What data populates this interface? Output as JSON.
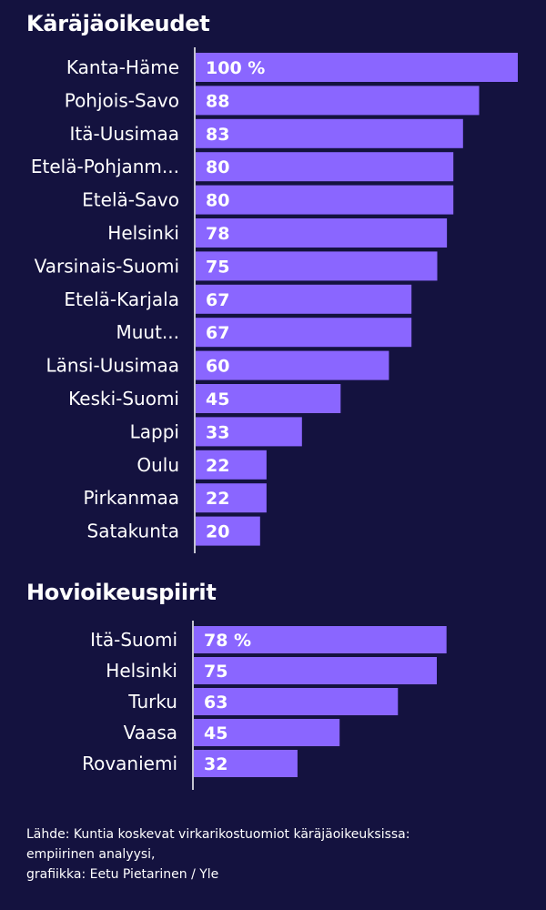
{
  "chart_data": [
    {
      "type": "bar",
      "orientation": "horizontal",
      "title": "Käräjäoikeudet",
      "categories": [
        "Kanta-Häme",
        "Pohjois-Savo",
        "Itä-Uusimaa",
        "Etelä-Pohjanm...",
        "Etelä-Savo",
        "Helsinki",
        "Varsinais-Suomi",
        "Etelä-Karjala",
        "Muut...",
        "Länsi-Uusimaa",
        "Keski-Suomi",
        "Lappi",
        "Oulu",
        "Pirkanmaa",
        "Satakunta"
      ],
      "values": [
        100,
        88,
        83,
        80,
        80,
        78,
        75,
        67,
        67,
        60,
        45,
        33,
        22,
        22,
        20
      ],
      "value_labels": [
        "100 %",
        "88",
        "83",
        "80",
        "80",
        "78",
        "75",
        "67",
        "67",
        "60",
        "45",
        "33",
        "22",
        "22",
        "20"
      ],
      "xlim": [
        0,
        100
      ],
      "bar_color": "#8a66ff",
      "grid": false,
      "legend": "none"
    },
    {
      "type": "bar",
      "orientation": "horizontal",
      "title": "Hovioikeuspiirit",
      "categories": [
        "Itä-Suomi",
        "Helsinki",
        "Turku",
        "Vaasa",
        "Rovaniemi"
      ],
      "values": [
        78,
        75,
        63,
        45,
        32
      ],
      "value_labels": [
        "78 %",
        "75",
        "63",
        "45",
        "32"
      ],
      "xlim": [
        0,
        100
      ],
      "bar_color": "#8a66ff",
      "grid": false,
      "legend": "none"
    }
  ],
  "source": {
    "line1": "Lähde: Kuntia koskevat virkarikostuomiot käräjäoikeuksissa:",
    "line2": "empiirinen analyysi,",
    "line3": "grafiikka: Eetu Pietarinen / Yle"
  },
  "colors": {
    "background": "#14123f",
    "bar": "#8a66ff",
    "text": "#ffffff"
  }
}
